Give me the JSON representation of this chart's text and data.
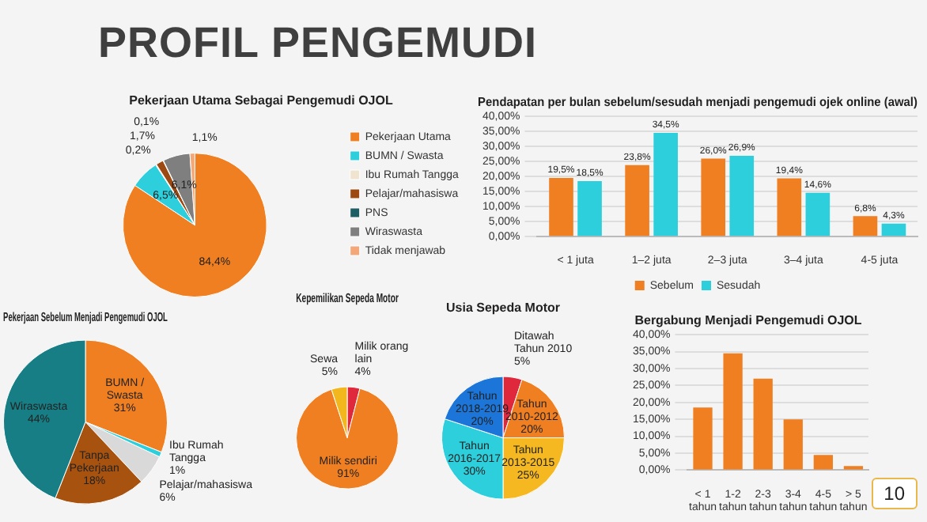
{
  "chart_data": [
    {
      "type": "other",
      "title": "PROFIL PENGEMUDI",
      "annotations": [
        "10"
      ]
    },
    {
      "type": "pie",
      "title": "Pekerjaan Utama Sebagai Pengemudi OJOL",
      "categories": [
        "Pekerjaan Utama",
        "BUMN / Swasta",
        "Ibu Rumah Tangga",
        "Pelajar/mahasiswa",
        "PNS",
        "Wiraswasta",
        "Tidak menjawab"
      ],
      "values": [
        84.4,
        6.5,
        0.2,
        1.7,
        0.1,
        6.1,
        1.1
      ],
      "colors": [
        "#f07f22",
        "#2ecfdc",
        "#efe4cf",
        "#9c4a12",
        "#1e5f66",
        "#7f7f7f",
        "#f2a878"
      ],
      "value_labels": [
        "84,4%",
        "6,5%",
        "0,2%",
        "1,7%",
        "0,1%",
        "6,1%",
        "1,1%"
      ],
      "legend": "right"
    },
    {
      "type": "bar",
      "title": "Pendapatan per bulan sebelum/sesudah menjadi pengemudi ojek online (awal)",
      "categories": [
        "< 1 juta",
        "1–2 juta",
        "2–3 juta",
        "3–4 juta",
        "4-5 juta"
      ],
      "series": [
        {
          "name": "Sebelum",
          "color": "#f07f22",
          "values": [
            19.5,
            23.8,
            26.0,
            19.4,
            6.8
          ],
          "value_labels": [
            "19,5%",
            "23,8%",
            "26,0%",
            "19,4%",
            "6,8%"
          ]
        },
        {
          "name": "Sesudah",
          "color": "#2ecfdc",
          "values": [
            18.5,
            34.5,
            26.9,
            14.6,
            4.3
          ],
          "value_labels": [
            "18,5%",
            "34,5%",
            "26,9%",
            "14,6%",
            "4,3%"
          ]
        }
      ],
      "ylim": [
        0,
        40
      ],
      "yticks": [
        {
          "value": 0,
          "label": "0,00%"
        },
        {
          "value": 5,
          "label": "5,00%"
        },
        {
          "value": 10,
          "label": "10,00%"
        },
        {
          "value": 15,
          "label": "15,00%"
        },
        {
          "value": 20,
          "label": "20,00%"
        },
        {
          "value": 25,
          "label": "25,00%"
        },
        {
          "value": 30,
          "label": "30,00%"
        },
        {
          "value": 35,
          "label": "35,00%"
        },
        {
          "value": 40,
          "label": "40,00%"
        }
      ],
      "grid": "y",
      "legend": "bottom"
    },
    {
      "type": "pie",
      "title": "Pekerjaan Sebelum Menjadi Pengemudi OJOL",
      "categories": [
        "BUMN / Swasta",
        "Ibu Rumah Tangga",
        "Pelajar/mahasiswa",
        "Tanpa Pekerjaan",
        "Wiraswasta"
      ],
      "values": [
        31,
        1,
        6,
        18,
        44
      ],
      "colors": [
        "#f07f22",
        "#2ecfdc",
        "#d9d9d9",
        "#a8520f",
        "#177e85"
      ],
      "value_labels": [
        "31%",
        "1%",
        "6%",
        "18%",
        "44%"
      ]
    },
    {
      "type": "pie",
      "title": "Kepemilikan Sepeda Motor",
      "categories": [
        "Milik orang lain",
        "Milik sendiri",
        "Sewa"
      ],
      "values": [
        4,
        91,
        5
      ],
      "colors": [
        "#e0283c",
        "#f07f22",
        "#f2b71c"
      ],
      "value_labels": [
        "4%",
        "91%",
        "5%"
      ]
    },
    {
      "type": "pie",
      "title": "Usia Sepeda Motor",
      "categories": [
        "Ditawah Tahun 2010",
        "Tahun 2010-2012",
        "Tahun 2013-2015",
        "Tahun 2016-2017",
        "Tahun 2018-2019"
      ],
      "values": [
        5,
        20,
        25,
        30,
        20
      ],
      "colors": [
        "#e0283c",
        "#f07f22",
        "#f5b820",
        "#2ecfdc",
        "#1c75d8"
      ],
      "value_labels": [
        "5%",
        "20%",
        "25%",
        "30%",
        "20%"
      ]
    },
    {
      "type": "bar",
      "title": "Bergabung Menjadi Pengemudi OJOL",
      "categories": [
        "< 1 tahun",
        "1-2 tahun",
        "2-3 tahun",
        "3-4 tahun",
        "4-5 tahun",
        "> 5 tahun"
      ],
      "values": [
        18.5,
        34.5,
        27,
        15,
        4.5,
        1.2
      ],
      "color": "#f07f22",
      "ylim": [
        0,
        40
      ],
      "yticks": [
        {
          "value": 0,
          "label": "0,00%"
        },
        {
          "value": 5,
          "label": "5,00%"
        },
        {
          "value": 10,
          "label": "10,00%"
        },
        {
          "value": 15,
          "label": "15,00%"
        },
        {
          "value": 20,
          "label": "20,00%"
        },
        {
          "value": 25,
          "label": "25,00%"
        },
        {
          "value": 30,
          "label": "30,00%"
        },
        {
          "value": 35,
          "label": "35,00%"
        },
        {
          "value": 40,
          "label": "40,00%"
        }
      ],
      "grid": "y"
    }
  ]
}
